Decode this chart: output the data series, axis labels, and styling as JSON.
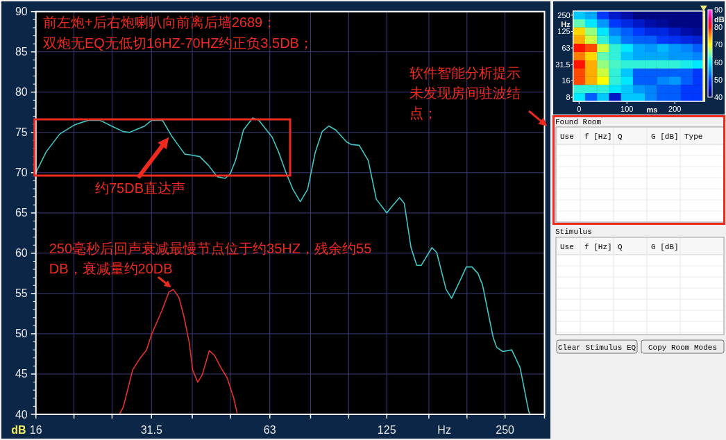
{
  "chart_data": [
    {
      "type": "line",
      "xlabel": "Hz",
      "ylabel": "dB",
      "log": "x",
      "xlim": [
        16,
        315
      ],
      "xticks": [
        16,
        {
          "value": 20,
          "label": null
        },
        {
          "value": 25,
          "label": null
        },
        31.5,
        {
          "value": 40,
          "label": null
        },
        {
          "value": 50,
          "label": null
        },
        63,
        {
          "value": 80,
          "label": null
        },
        {
          "value": 100,
          "label": null
        },
        125,
        {
          "value": 160,
          "label": null
        },
        {
          "value": 200,
          "label": null
        },
        250,
        {
          "value": 315,
          "label": null
        }
      ],
      "ylim": [
        40,
        90
      ],
      "yticks": [
        40,
        45,
        50,
        55,
        60,
        65,
        70,
        75,
        80,
        85,
        90
      ],
      "grid": true,
      "series": [
        {
          "color": "#3fc6c6",
          "x": [
            16,
            17.0,
            18.4,
            20,
            21.7,
            23.3,
            24.9,
            26.7,
            27.7,
            30.3,
            31.5,
            33.6,
            35.5,
            38.3,
            39.6,
            41.8,
            44.0,
            46.3,
            48.5,
            50,
            51.6,
            54.0,
            57.0,
            59.1,
            63.9,
            66.4,
            69.4,
            72.2,
            75.3,
            78.6,
            82.2,
            85.6,
            89.0,
            92.7,
            98.9,
            101.6,
            106.4,
            112.2,
            117.6,
            125,
            129.3,
            134.7,
            138.5,
            144.1,
            149,
            153,
            162.9,
            167.5,
            177,
            182.8,
            193.8,
            199.2,
            206,
            213.2,
            219,
            233.3,
            238.2,
            246.5,
            260,
            273,
            286.5,
            288.8
          ],
          "values": [
            70.0,
            72.6,
            74.8,
            75.9,
            76.5,
            76.5,
            75.8,
            75.1,
            75.0,
            75.8,
            76.5,
            76.5,
            74.5,
            72.3,
            72.2,
            72.0,
            70.9,
            69.5,
            69.3,
            69.9,
            71.6,
            75.3,
            76.8,
            76.5,
            74.4,
            72.5,
            69.9,
            67.9,
            66.4,
            67.9,
            72.5,
            75.1,
            75.8,
            75.3,
            73.8,
            73.5,
            73.4,
            71.5,
            66.7,
            65.0,
            65.9,
            66.9,
            66.2,
            60.7,
            58.5,
            58.5,
            60.7,
            60.1,
            55.5,
            54.4,
            57.0,
            58.3,
            58.3,
            57.5,
            56.1,
            49.5,
            48.3,
            47.8,
            48.0,
            45.8,
            40.6,
            40.0
          ]
        },
        {
          "color": "#e8302a",
          "x": [
            26.1,
            26.7,
            28.2,
            29.4,
            30.6,
            31.5,
            33.5,
            34.9,
            35.8,
            37.0,
            38.1,
            39.3,
            40.1,
            41.3,
            42.4,
            44.2,
            45.6,
            47.3,
            49.1,
            51.0,
            52.0
          ],
          "values": [
            40.0,
            40.9,
            45.5,
            46.9,
            48.0,
            49.9,
            52.9,
            55.2,
            55.5,
            54.5,
            52.1,
            48.9,
            45.5,
            44.0,
            44.9,
            47.9,
            47.3,
            45.8,
            44.5,
            42.0,
            40.2
          ]
        }
      ],
      "annotations": [
        "前左炮+后右炮喇叭向前离后墙2689；",
        "双炮无EQ无低切16HZ-70HZ约正负3.5DB；",
        "约75DB直达声",
        {
          "text": "250毫秒后回声衰减最慢节点位于约35HZ，残余约55DB，衰减量约20DB",
          "x": 35.8,
          "y": 55.5
        },
        "软件智能分析提示未发现房间驻波结点；"
      ]
    },
    {
      "type": "heatmap",
      "xlabel": "ms",
      "ylabel": "Hz",
      "clabel": "dB",
      "clim": [
        40,
        90
      ],
      "cticks": [
        40,
        50,
        60,
        70,
        80,
        90
      ],
      "categories": [
        "0",
        null,
        null,
        null,
        "100",
        null,
        null,
        null,
        "200",
        null,
        null
      ],
      "y_categories": [
        "250",
        null,
        "125",
        null,
        "63",
        null,
        "31.5",
        null,
        "16",
        null,
        "8"
      ],
      "cells": [
        [
          58,
          56,
          50,
          46,
          44,
          42,
          42,
          42,
          42,
          42,
          42
        ],
        [
          64,
          60,
          55,
          50,
          48,
          46,
          44,
          43,
          42,
          42,
          42
        ],
        [
          72,
          66,
          60,
          54,
          52,
          50,
          48,
          48,
          46,
          44,
          43
        ],
        [
          74,
          68,
          62,
          57,
          53,
          52,
          52,
          50,
          49,
          48,
          47
        ],
        [
          80,
          78,
          68,
          62,
          60,
          56,
          55,
          57,
          55,
          54,
          52
        ],
        [
          76,
          72,
          64,
          62,
          58,
          56,
          56,
          56,
          55,
          55,
          54
        ],
        [
          80,
          74,
          66,
          63,
          62,
          62,
          62,
          62,
          62,
          61,
          60
        ],
        [
          78,
          74,
          68,
          62,
          58,
          52,
          52,
          52,
          52,
          52,
          50
        ],
        [
          78,
          74,
          70,
          62,
          60,
          52,
          52,
          54,
          55,
          52,
          50
        ],
        [
          62,
          62,
          62,
          60,
          58,
          55,
          54,
          52,
          52,
          50,
          50
        ],
        [
          60,
          52,
          58,
          46,
          58,
          58,
          54,
          52,
          52,
          50,
          50
        ]
      ]
    },
    {
      "type": "other",
      "title": "Found Room",
      "annotations": [
        "Use",
        "f [Hz]",
        "Q",
        "G [dB]",
        "Type"
      ]
    },
    {
      "type": "other",
      "title": "Stimulus",
      "annotations": [
        "Use",
        "f [Hz]",
        "Q",
        "G [dB]"
      ]
    },
    {
      "type": "other",
      "annotations": [
        "Clear Stimulus EQ",
        "Copy Room Modes"
      ]
    }
  ]
}
